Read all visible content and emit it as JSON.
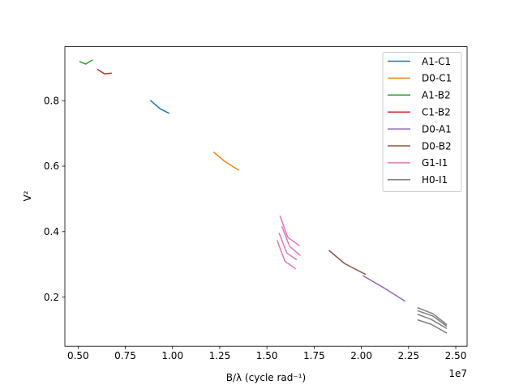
{
  "chart_data": {
    "type": "line",
    "xlabel": "B/λ (cycle rad⁻¹)",
    "ylabel": "V²",
    "x_scale_label": "1e7",
    "xlim": [
      4.3,
      25.6
    ],
    "ylim": [
      0.05,
      0.965
    ],
    "xticks": [
      5.0,
      7.5,
      10.0,
      12.5,
      15.0,
      17.5,
      20.0,
      22.5,
      25.0
    ],
    "xtick_labels": [
      "0.50",
      "0.75",
      "1.00",
      "1.25",
      "1.50",
      "1.75",
      "2.00",
      "2.25",
      "2.50"
    ],
    "yticks": [
      0.2,
      0.4,
      0.6,
      0.8
    ],
    "ytick_labels": [
      "0.2",
      "0.4",
      "0.6",
      "0.8"
    ],
    "grid": false,
    "legend_position": "top-right",
    "series": [
      {
        "name": "A1-C1",
        "color": "#1f77b4",
        "lines": [
          [
            [
              8.85,
              0.8
            ],
            [
              9.35,
              0.775
            ],
            [
              9.8,
              0.762
            ]
          ]
        ]
      },
      {
        "name": "D0-C1",
        "color": "#ff7f0e",
        "lines": [
          [
            [
              12.2,
              0.642
            ],
            [
              12.75,
              0.615
            ],
            [
              13.5,
              0.588
            ]
          ]
        ]
      },
      {
        "name": "A1-B2",
        "color": "#2ca02c",
        "lines": [
          [
            [
              5.1,
              0.919
            ],
            [
              5.4,
              0.912
            ],
            [
              5.75,
              0.924
            ]
          ]
        ]
      },
      {
        "name": "C1-B2",
        "color": "#d62728",
        "lines": [
          [
            [
              6.05,
              0.895
            ],
            [
              6.4,
              0.882
            ],
            [
              6.75,
              0.884
            ]
          ]
        ]
      },
      {
        "name": "D0-A1",
        "color": "#9467bd",
        "lines": [
          [
            [
              20.1,
              0.265
            ],
            [
              21.2,
              0.228
            ],
            [
              22.3,
              0.188
            ]
          ]
        ]
      },
      {
        "name": "D0-B2",
        "color": "#8c564b",
        "lines": [
          [
            [
              18.3,
              0.342
            ],
            [
              19.1,
              0.303
            ],
            [
              20.2,
              0.27
            ]
          ]
        ]
      },
      {
        "name": "G1-I1",
        "color": "#e377c2",
        "lines": [
          [
            [
              15.7,
              0.447
            ],
            [
              16.1,
              0.383
            ],
            [
              16.7,
              0.358
            ]
          ],
          [
            [
              15.8,
              0.415
            ],
            [
              16.2,
              0.355
            ],
            [
              16.75,
              0.328
            ]
          ],
          [
            [
              15.65,
              0.395
            ],
            [
              16.05,
              0.335
            ],
            [
              16.55,
              0.315
            ]
          ],
          [
            [
              15.55,
              0.372
            ],
            [
              15.95,
              0.31
            ],
            [
              16.5,
              0.287
            ]
          ]
        ]
      },
      {
        "name": "H0-I1",
        "color": "#7f7f7f",
        "lines": [
          [
            [
              23.0,
              0.167
            ],
            [
              23.8,
              0.149
            ],
            [
              24.5,
              0.117
            ]
          ],
          [
            [
              23.0,
              0.158
            ],
            [
              23.8,
              0.142
            ],
            [
              24.5,
              0.112
            ]
          ],
          [
            [
              23.0,
              0.147
            ],
            [
              23.7,
              0.132
            ],
            [
              24.5,
              0.105
            ]
          ],
          [
            [
              23.0,
              0.13
            ],
            [
              23.7,
              0.117
            ],
            [
              24.5,
              0.091
            ]
          ]
        ]
      }
    ]
  }
}
